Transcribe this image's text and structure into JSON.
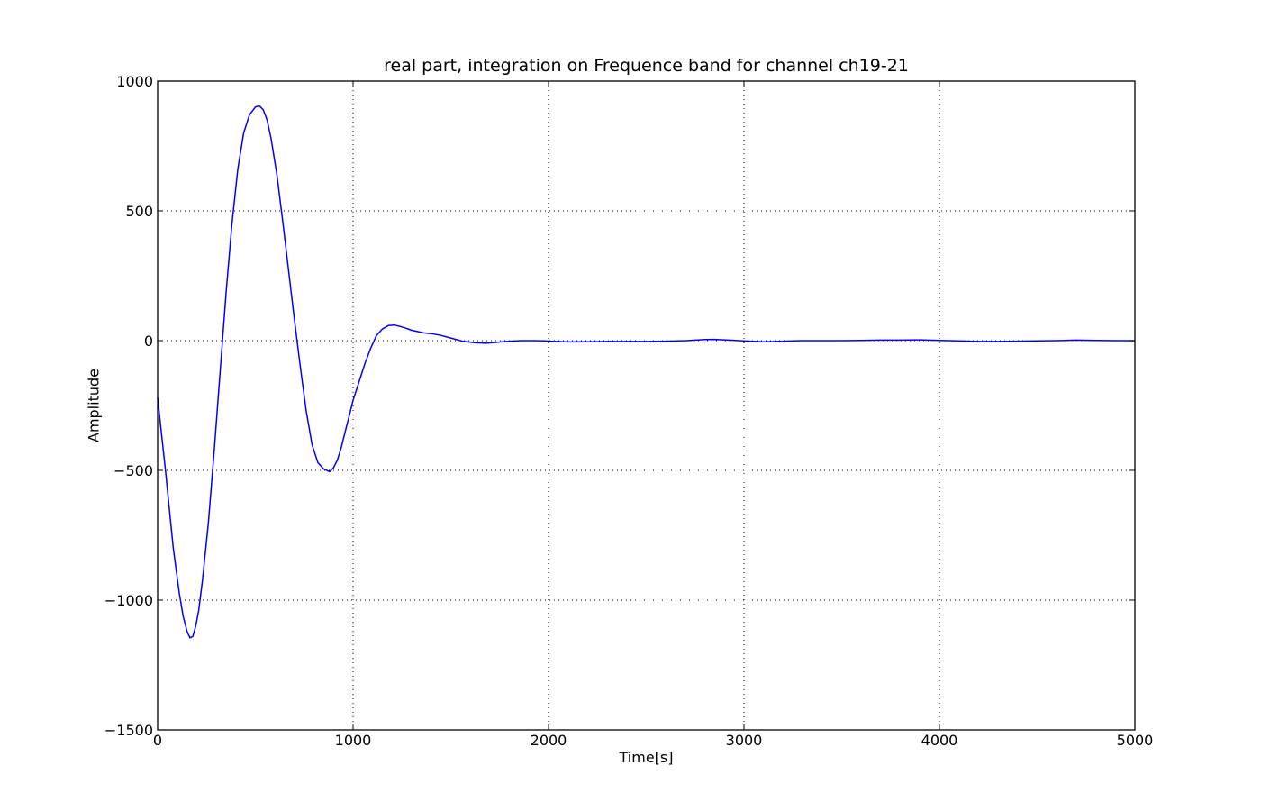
{
  "chart_data": {
    "type": "line",
    "title": "real part, integration on Frequence band for channel ch19-21",
    "xlabel": "Time[s]",
    "ylabel": "Amplitude",
    "xlim": [
      0,
      5000
    ],
    "ylim": [
      -1500,
      1000
    ],
    "xticks": [
      0,
      1000,
      2000,
      3000,
      4000,
      5000
    ],
    "xtick_labels": [
      "0",
      "1000",
      "2000",
      "3000",
      "4000",
      "5000"
    ],
    "yticks": [
      -1500,
      -1000,
      -500,
      0,
      500,
      1000
    ],
    "ytick_labels": [
      "−1500",
      "−1000",
      "−500",
      "0",
      "500",
      "1000"
    ],
    "grid": true,
    "legend": false,
    "color": "#0000ff",
    "series": [
      {
        "x": [
          0,
          40,
          80,
          110,
          130,
          150,
          165,
          180,
          195,
          210,
          230,
          260,
          290,
          320,
          350,
          380,
          410,
          440,
          470,
          500,
          520,
          540,
          560,
          580,
          610,
          640,
          670,
          700,
          730,
          760,
          790,
          820,
          850,
          880,
          900,
          920,
          940,
          960,
          980,
          1000,
          1030,
          1060,
          1090,
          1120,
          1150,
          1180,
          1210,
          1240,
          1270,
          1300,
          1330,
          1360,
          1400,
          1450,
          1500,
          1560,
          1620,
          1680,
          1740,
          1800,
          1860,
          1920,
          1980,
          2040,
          2100,
          2200,
          2300,
          2400,
          2500,
          2600,
          2700,
          2800,
          2850,
          2900,
          3000,
          3100,
          3200,
          3300,
          3400,
          3500,
          3600,
          3700,
          3800,
          3900,
          4000,
          4100,
          4200,
          4300,
          4400,
          4500,
          4600,
          4700,
          4800,
          4900,
          5000
        ],
        "y": [
          -220,
          -500,
          -800,
          -970,
          -1060,
          -1120,
          -1145,
          -1140,
          -1100,
          -1040,
          -920,
          -700,
          -420,
          -120,
          180,
          450,
          660,
          800,
          870,
          900,
          905,
          890,
          850,
          780,
          640,
          460,
          270,
          80,
          -100,
          -270,
          -400,
          -470,
          -495,
          -505,
          -490,
          -460,
          -410,
          -350,
          -290,
          -230,
          -160,
          -90,
          -30,
          20,
          45,
          58,
          60,
          55,
          48,
          40,
          35,
          30,
          27,
          20,
          10,
          -2,
          -8,
          -10,
          -6,
          -2,
          0,
          0,
          -1,
          -3,
          -5,
          -4,
          -3,
          -3,
          -3,
          -2,
          0,
          4,
          5,
          3,
          -1,
          -4,
          -2,
          0,
          0,
          0,
          1,
          2,
          2,
          3,
          1,
          -1,
          -3,
          -3,
          -2,
          -1,
          0,
          2,
          1,
          0,
          0
        ]
      }
    ]
  }
}
